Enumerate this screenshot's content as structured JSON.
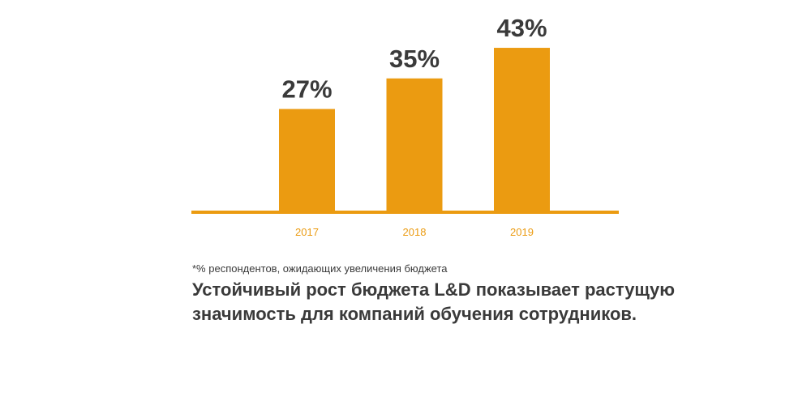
{
  "chart_data": {
    "type": "bar",
    "categories": [
      "2017",
      "2018",
      "2019"
    ],
    "values": [
      27,
      35,
      43
    ],
    "value_labels": [
      "27%",
      "35%",
      "43%"
    ],
    "ylim": [
      0,
      50
    ],
    "grid": false,
    "legend": "none"
  },
  "footnote": "*% респондентов, ожидающих увеличения бюджета",
  "headline": "Устойчивый рост бюджета L&D показывает растущую значимость для компаний обучения сотрудников.",
  "colors": {
    "bar": "#eb9b11",
    "axis": "#eb9b11",
    "text": "#3a3a3a"
  }
}
